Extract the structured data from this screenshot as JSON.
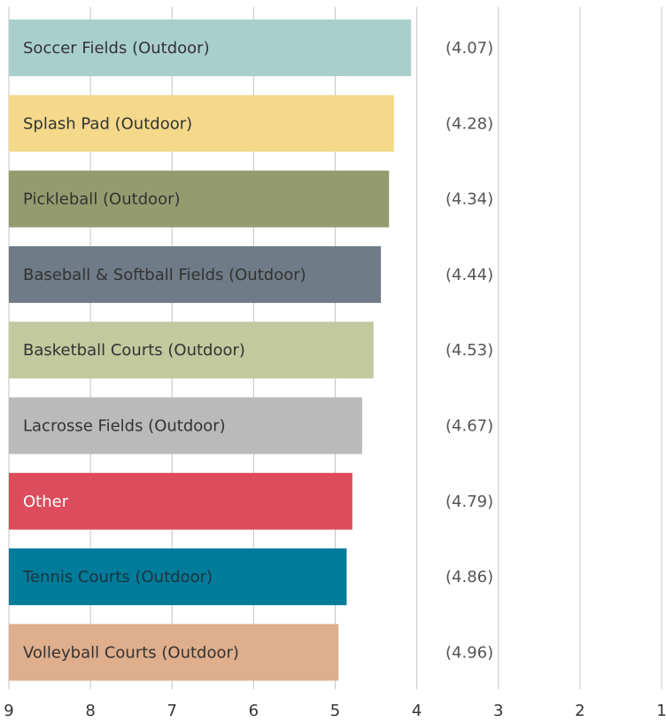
{
  "chart_data": {
    "type": "barh",
    "categories": [
      "Soccer Fields (Outdoor)",
      "Splash Pad (Outdoor)",
      "Pickleball (Outdoor)",
      "Baseball & Softball Fields (Outdoor)",
      "Basketball Courts (Outdoor)",
      "Lacrosse Fields (Outdoor)",
      "Other",
      "Tennis Courts (Outdoor)",
      "Volleyball Courts (Outdoor)"
    ],
    "values": [
      4.07,
      4.28,
      4.34,
      4.44,
      4.53,
      4.67,
      4.79,
      4.86,
      4.96
    ],
    "value_labels": [
      "(4.07)",
      "(4.28)",
      "(4.34)",
      "(4.44)",
      "(4.53)",
      "(4.67)",
      "(4.79)",
      "(4.86)",
      "(4.96)"
    ],
    "colors": [
      "#a9cfcb",
      "#f4d98b",
      "#949b6e",
      "#6f7b86",
      "#c2c99e",
      "#bababa",
      "#dc4c5c",
      "#007b99",
      "#dfae8c"
    ],
    "label_colors": [
      "#333333",
      "#333333",
      "#333333",
      "#333333",
      "#333333",
      "#333333",
      "#ffffff",
      "#1d3340",
      "#333333"
    ],
    "xlim": [
      9,
      1
    ],
    "xticks": [
      9,
      8,
      7,
      6,
      5,
      4,
      3,
      2,
      1
    ],
    "grid": true
  }
}
